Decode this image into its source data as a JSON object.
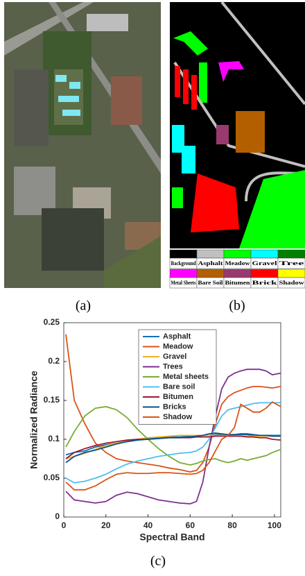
{
  "panel_labels": [
    "(a)",
    "(b)",
    "(c)"
  ],
  "map_legend": [
    {
      "label": "Background",
      "color": "#000000"
    },
    {
      "label": "Asphalt",
      "color": "#c0c0c0"
    },
    {
      "label": "Meadow",
      "color": "#00ff00"
    },
    {
      "label": "Gravel",
      "color": "#00ffff"
    },
    {
      "label": "Tree",
      "color": "#008000"
    },
    {
      "label": "Metal Sheets",
      "color": "#ff00ff"
    },
    {
      "label": "Bare Soil",
      "color": "#b35f00"
    },
    {
      "label": "Bitumen",
      "color": "#993a6e"
    },
    {
      "label": "Brick",
      "color": "#ff0000"
    },
    {
      "label": "Shadow",
      "color": "#ffff00"
    }
  ],
  "chart_data": {
    "type": "line",
    "xlabel": "Spectral Band",
    "ylabel": "Normalized Radiance",
    "x": [
      1,
      5,
      10,
      15,
      20,
      25,
      30,
      35,
      40,
      45,
      50,
      55,
      60,
      63,
      66,
      69,
      72,
      75,
      78,
      81,
      84,
      87,
      90,
      93,
      96,
      99,
      103
    ],
    "xlim": [
      0,
      103
    ],
    "ylim": [
      0,
      0.25
    ],
    "xticks": [
      0,
      20,
      40,
      60,
      80,
      100
    ],
    "yticks": [
      0,
      0.05,
      0.1,
      0.15,
      0.2,
      0.25
    ],
    "legend": "top-center",
    "series": [
      {
        "name": "Asphalt",
        "color": "#0072bd",
        "values": [
          0.08,
          0.083,
          0.085,
          0.09,
          0.093,
          0.095,
          0.097,
          0.099,
          0.101,
          0.102,
          0.103,
          0.103,
          0.104,
          0.104,
          0.105,
          0.105,
          0.106,
          0.106,
          0.106,
          0.106,
          0.106,
          0.106,
          0.105,
          0.105,
          0.105,
          0.105,
          0.105
        ]
      },
      {
        "name": "Meadow",
        "color": "#d95319",
        "values": [
          0.235,
          0.15,
          0.12,
          0.095,
          0.083,
          0.075,
          0.072,
          0.07,
          0.068,
          0.066,
          0.063,
          0.061,
          0.058,
          0.06,
          0.07,
          0.09,
          0.12,
          0.145,
          0.155,
          0.16,
          0.163,
          0.166,
          0.168,
          0.168,
          0.167,
          0.166,
          0.168
        ]
      },
      {
        "name": "Gravel",
        "color": "#edb120",
        "values": [
          0.075,
          0.078,
          0.082,
          0.087,
          0.092,
          0.095,
          0.098,
          0.1,
          0.102,
          0.103,
          0.104,
          0.105,
          0.105,
          0.105,
          0.105,
          0.105,
          0.105,
          0.105,
          0.105,
          0.105,
          0.104,
          0.104,
          0.104,
          0.104,
          0.104,
          0.104,
          0.104
        ]
      },
      {
        "name": "Trees",
        "color": "#7e2f8e",
        "values": [
          0.033,
          0.022,
          0.02,
          0.018,
          0.02,
          0.028,
          0.032,
          0.03,
          0.026,
          0.022,
          0.02,
          0.018,
          0.017,
          0.02,
          0.045,
          0.09,
          0.13,
          0.165,
          0.18,
          0.185,
          0.188,
          0.19,
          0.19,
          0.19,
          0.188,
          0.183,
          0.185
        ]
      },
      {
        "name": "Metal sheets",
        "color": "#77ac30",
        "values": [
          0.09,
          0.11,
          0.13,
          0.14,
          0.142,
          0.138,
          0.128,
          0.113,
          0.1,
          0.088,
          0.078,
          0.07,
          0.067,
          0.069,
          0.072,
          0.074,
          0.075,
          0.072,
          0.07,
          0.072,
          0.075,
          0.073,
          0.075,
          0.077,
          0.079,
          0.083,
          0.087
        ]
      },
      {
        "name": "Bare soil",
        "color": "#4dbeee",
        "values": [
          0.05,
          0.044,
          0.046,
          0.05,
          0.055,
          0.062,
          0.068,
          0.072,
          0.075,
          0.078,
          0.08,
          0.082,
          0.083,
          0.085,
          0.09,
          0.1,
          0.115,
          0.13,
          0.138,
          0.14,
          0.142,
          0.144,
          0.146,
          0.147,
          0.147,
          0.147,
          0.147
        ]
      },
      {
        "name": "Bitumen",
        "color": "#a2142f",
        "values": [
          0.075,
          0.083,
          0.088,
          0.092,
          0.095,
          0.097,
          0.099,
          0.1,
          0.1,
          0.101,
          0.102,
          0.102,
          0.102,
          0.103,
          0.103,
          0.103,
          0.104,
          0.104,
          0.104,
          0.104,
          0.104,
          0.103,
          0.103,
          0.102,
          0.102,
          0.1,
          0.099
        ]
      },
      {
        "name": "Bricks",
        "color": "#0b4f8a",
        "values": [
          0.07,
          0.078,
          0.083,
          0.086,
          0.09,
          0.094,
          0.097,
          0.099,
          0.1,
          0.101,
          0.102,
          0.102,
          0.103,
          0.104,
          0.105,
          0.107,
          0.108,
          0.107,
          0.106,
          0.106,
          0.107,
          0.107,
          0.106,
          0.105,
          0.105,
          0.104,
          0.104
        ]
      },
      {
        "name": "Shadow",
        "color": "#d95319",
        "values": [
          0.045,
          0.035,
          0.035,
          0.04,
          0.048,
          0.055,
          0.057,
          0.056,
          0.056,
          0.057,
          0.057,
          0.056,
          0.055,
          0.056,
          0.06,
          0.07,
          0.085,
          0.1,
          0.105,
          0.115,
          0.145,
          0.14,
          0.135,
          0.135,
          0.14,
          0.148,
          0.142
        ]
      }
    ]
  }
}
